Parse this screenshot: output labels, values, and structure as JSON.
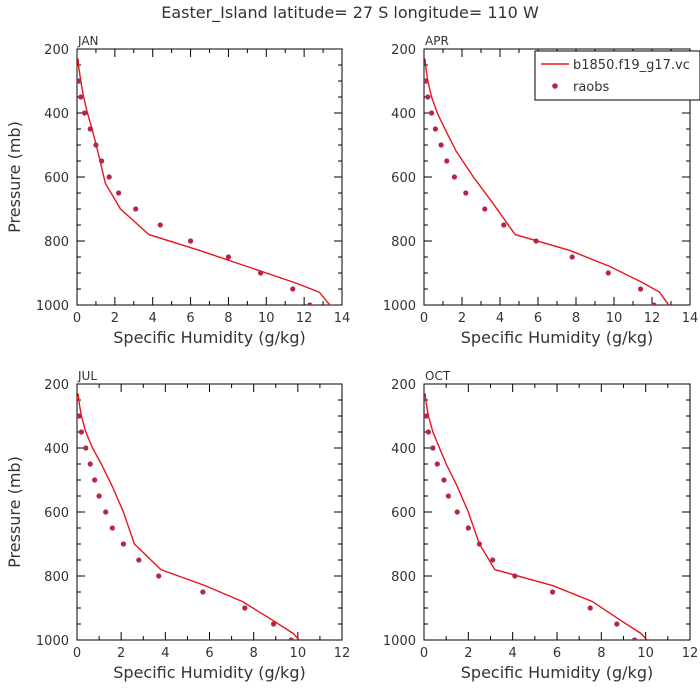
{
  "title": "Easter_Island  latitude= 27 S longitude= 110 W",
  "colors": {
    "model": "#e8141b",
    "obs": "#b5244a"
  },
  "legend": {
    "model_label": "b1850.f19_g17.vc",
    "obs_label": "raobs"
  },
  "chart_data": [
    {
      "type": "line",
      "panel": "JAN",
      "xlabel": "Specific Humidity (g/kg)",
      "ylabel": "Pressure (mb)",
      "xlim": [
        0,
        14
      ],
      "ylim": [
        1000,
        200
      ],
      "xticks": [
        0,
        2,
        4,
        6,
        8,
        10,
        12,
        14
      ],
      "yticks": [
        200,
        400,
        600,
        800,
        1000
      ],
      "series": [
        {
          "name": "b1850.f19_g17.vc",
          "kind": "line",
          "x": [
            0.05,
            0.1,
            0.2,
            0.35,
            0.55,
            0.8,
            1.1,
            1.5,
            2.3,
            3.8,
            6.5,
            9.5,
            11.5,
            12.8,
            13.5
          ],
          "y": [
            230,
            260,
            300,
            350,
            400,
            450,
            520,
            620,
            700,
            780,
            830,
            890,
            930,
            960,
            1010
          ]
        },
        {
          "name": "raobs",
          "kind": "scatter",
          "x": [
            0.1,
            0.2,
            0.4,
            0.7,
            1.0,
            1.3,
            1.7,
            2.2,
            3.1,
            4.4,
            6.0,
            8.0,
            9.7,
            11.4,
            12.3
          ],
          "y": [
            300,
            350,
            400,
            450,
            500,
            550,
            600,
            650,
            700,
            750,
            800,
            850,
            900,
            950,
            1000
          ]
        }
      ]
    },
    {
      "type": "line",
      "panel": "APR",
      "xlabel": "Specific Humidity (g/kg)",
      "ylabel": "Pressure (mb)",
      "xlim": [
        0,
        14
      ],
      "ylim": [
        1000,
        200
      ],
      "xticks": [
        0,
        2,
        4,
        6,
        8,
        10,
        12,
        14
      ],
      "yticks": [
        200,
        400,
        600,
        800,
        1000
      ],
      "series": [
        {
          "name": "b1850.f19_g17.vc",
          "kind": "line",
          "x": [
            0.05,
            0.1,
            0.2,
            0.4,
            0.7,
            1.1,
            1.7,
            2.6,
            3.6,
            4.8,
            7.7,
            9.8,
            11.5,
            12.4,
            13.0
          ],
          "y": [
            230,
            260,
            300,
            350,
            400,
            450,
            520,
            600,
            680,
            780,
            830,
            880,
            930,
            960,
            1010
          ]
        },
        {
          "name": "raobs",
          "kind": "scatter",
          "x": [
            0.1,
            0.2,
            0.4,
            0.6,
            0.9,
            1.2,
            1.6,
            2.2,
            3.2,
            4.2,
            5.9,
            7.8,
            9.7,
            11.4,
            12.1
          ],
          "y": [
            300,
            350,
            400,
            450,
            500,
            550,
            600,
            650,
            700,
            750,
            800,
            850,
            900,
            950,
            1000
          ]
        }
      ]
    },
    {
      "type": "line",
      "panel": "JUL",
      "xlabel": "Specific Humidity (g/kg)",
      "ylabel": "Pressure (mb)",
      "xlim": [
        0,
        12
      ],
      "ylim": [
        1000,
        200
      ],
      "xticks": [
        0,
        2,
        4,
        6,
        8,
        10,
        12
      ],
      "yticks": [
        200,
        400,
        600,
        800,
        1000
      ],
      "series": [
        {
          "name": "b1850.f19_g17.vc",
          "kind": "line",
          "x": [
            0.05,
            0.1,
            0.2,
            0.4,
            0.7,
            1.1,
            1.6,
            2.1,
            2.6,
            3.8,
            5.8,
            7.5,
            8.9,
            9.8,
            10.2
          ],
          "y": [
            230,
            260,
            300,
            350,
            400,
            450,
            520,
            600,
            700,
            780,
            830,
            880,
            940,
            980,
            1010
          ]
        },
        {
          "name": "raobs",
          "kind": "scatter",
          "x": [
            0.1,
            0.2,
            0.4,
            0.6,
            0.8,
            1.0,
            1.3,
            1.6,
            2.1,
            2.8,
            3.7,
            5.7,
            7.6,
            8.9,
            9.7
          ],
          "y": [
            300,
            350,
            400,
            450,
            500,
            550,
            600,
            650,
            700,
            750,
            800,
            850,
            900,
            950,
            1000
          ]
        }
      ]
    },
    {
      "type": "line",
      "panel": "OCT",
      "xlabel": "Specific Humidity (g/kg)",
      "ylabel": "Pressure (mb)",
      "xlim": [
        0,
        12
      ],
      "ylim": [
        1000,
        200
      ],
      "xticks": [
        0,
        2,
        4,
        6,
        8,
        10,
        12
      ],
      "yticks": [
        200,
        400,
        600,
        800,
        1000
      ],
      "series": [
        {
          "name": "b1850.f19_g17.vc",
          "kind": "line",
          "x": [
            0.05,
            0.1,
            0.2,
            0.4,
            0.7,
            1.0,
            1.5,
            2.0,
            2.5,
            3.2,
            5.8,
            7.6,
            8.9,
            9.8,
            10.2
          ],
          "y": [
            230,
            260,
            300,
            350,
            400,
            450,
            520,
            600,
            700,
            780,
            830,
            880,
            940,
            980,
            1010
          ]
        },
        {
          "name": "raobs",
          "kind": "scatter",
          "x": [
            0.1,
            0.2,
            0.4,
            0.6,
            0.9,
            1.1,
            1.5,
            2.0,
            2.5,
            3.1,
            4.1,
            5.8,
            7.5,
            8.7,
            9.5
          ],
          "y": [
            300,
            350,
            400,
            450,
            500,
            550,
            600,
            650,
            700,
            750,
            800,
            850,
            900,
            950,
            1000
          ]
        }
      ]
    }
  ]
}
